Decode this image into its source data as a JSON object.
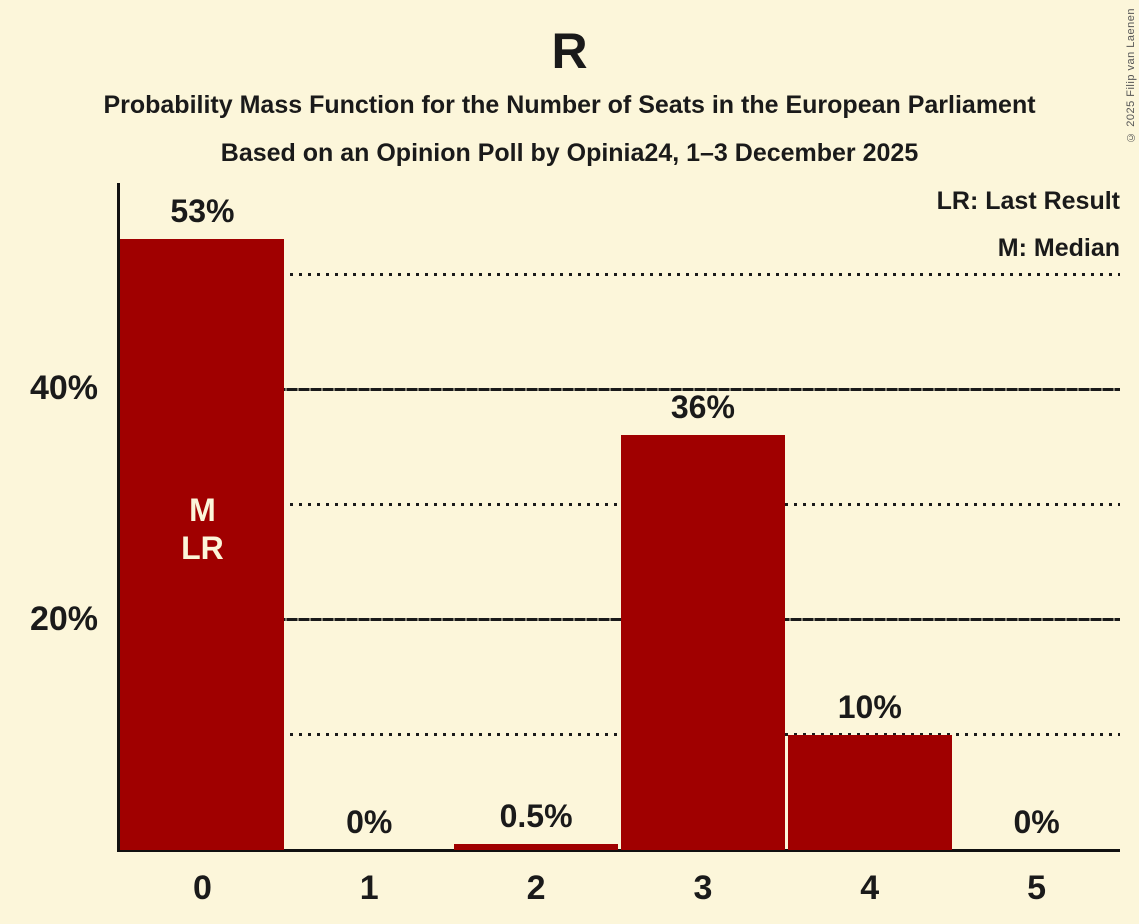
{
  "title": "R",
  "subtitle1": "Probability Mass Function for the Number of Seats in the European Parliament",
  "subtitle2": "Based on an Opinion Poll by Opinia24, 1–3 December 2025",
  "copyright": "© 2025 Filip van Laenen",
  "legend": {
    "lr": "LR: Last Result",
    "m": "M: Median"
  },
  "colors": {
    "background": "#fcf6da",
    "bar": "#a00000",
    "text": "#1a1a1a",
    "annotation_text": "#fcf6da",
    "copyright_text": "#555555"
  },
  "chart_data": {
    "type": "bar",
    "title": "R",
    "subtitle": "Probability Mass Function for the Number of Seats in the European Parliament",
    "source_line": "Based on an Opinion Poll by Opinia24, 1–3 December 2025",
    "categories": [
      "0",
      "1",
      "2",
      "3",
      "4",
      "5"
    ],
    "values": [
      53,
      0,
      0.5,
      36,
      10,
      0
    ],
    "value_labels": [
      "53%",
      "0%",
      "0.5%",
      "36%",
      "10%",
      "0%"
    ],
    "bar_annotations": [
      "M\nLR",
      "",
      "",
      "",
      "",
      ""
    ],
    "y_axis_ticks": [
      {
        "pct": 20,
        "label": "20%"
      },
      {
        "pct": 40,
        "label": "40%"
      }
    ],
    "gridlines": [
      {
        "pct": 10,
        "style": "dotted"
      },
      {
        "pct": 20,
        "style": "solid"
      },
      {
        "pct": 30,
        "style": "dotted"
      },
      {
        "pct": 40,
        "style": "solid"
      },
      {
        "pct": 50,
        "style": "dotted"
      }
    ],
    "ylim": [
      0,
      58
    ],
    "grid": true,
    "legend_position": "top-right",
    "legend_entries": [
      "LR: Last Result",
      "M: Median"
    ]
  }
}
